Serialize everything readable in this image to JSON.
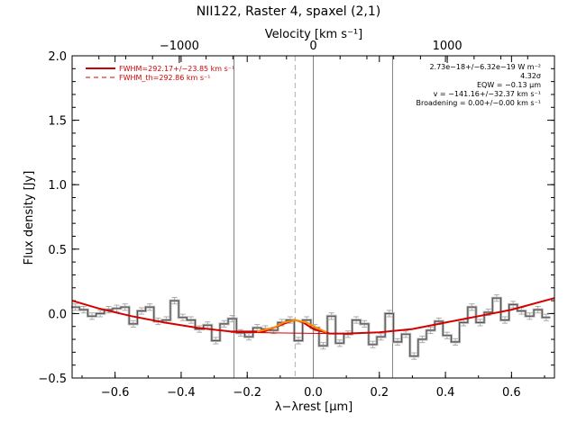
{
  "chart_data": {
    "type": "line",
    "title": "NII122, Raster 4, spaxel (2,1)",
    "xlabel": "λ−λrest [μm]",
    "ylabel": "Flux density [Jy]",
    "top_axis_label": "Velocity [km s⁻¹]",
    "xlim": [
      -0.73,
      0.73
    ],
    "ylim": [
      -0.5,
      2.0
    ],
    "top_xlim": [
      -1800,
      1800
    ],
    "x_ticks": [
      -0.6,
      -0.4,
      -0.2,
      0.0,
      0.2,
      0.4,
      0.6
    ],
    "x_tick_labels": [
      "−0.6",
      "−0.4",
      "−0.2",
      "0.0",
      "0.2",
      "0.4",
      "0.6"
    ],
    "y_ticks": [
      -0.5,
      0.0,
      0.5,
      1.0,
      1.5,
      2.0
    ],
    "y_tick_labels": [
      "−0.5",
      "0.0",
      "0.5",
      "1.0",
      "1.5",
      "2.0"
    ],
    "top_ticks": [
      -1000,
      0,
      1000
    ],
    "top_tick_labels": [
      "−1000",
      "0",
      "1000"
    ],
    "vertical_lines": [
      {
        "x": -0.24,
        "style": "solid",
        "color": "#808080"
      },
      {
        "x": -0.055,
        "style": "dashed",
        "color": "#b0b0b0"
      },
      {
        "x": 0.0,
        "style": "solid",
        "color": "#808080"
      },
      {
        "x": 0.24,
        "style": "solid",
        "color": "#808080"
      }
    ],
    "legend": {
      "placement": "top-left",
      "entries": [
        {
          "label": "FWHM=292.17+/−23.85 km s⁻¹",
          "style": "solid",
          "color": "#d40000"
        },
        {
          "label": "FWHM_th=292.86 km s⁻¹",
          "style": "dashed",
          "color": "#d40000"
        }
      ]
    },
    "annotations": [
      "2.73e−18+/−6.32e−19 W m⁻²",
      "4.32σ",
      "EQW = −0.13 μm",
      "v = −141.16+/−32.37 km s⁻¹",
      "Broadening = 0.00+/−0.00 km s⁻¹"
    ],
    "series": [
      {
        "style": "step",
        "color": "#555555",
        "x": [
          -0.72,
          -0.695,
          -0.67,
          -0.645,
          -0.62,
          -0.595,
          -0.57,
          -0.545,
          -0.52,
          -0.495,
          -0.47,
          -0.445,
          -0.42,
          -0.395,
          -0.37,
          -0.345,
          -0.32,
          -0.295,
          -0.27,
          -0.245,
          -0.22,
          -0.195,
          -0.17,
          -0.145,
          -0.12,
          -0.095,
          -0.07,
          -0.045,
          -0.02,
          0.005,
          0.03,
          0.055,
          0.08,
          0.105,
          0.13,
          0.155,
          0.18,
          0.205,
          0.23,
          0.255,
          0.28,
          0.305,
          0.33,
          0.355,
          0.38,
          0.405,
          0.43,
          0.455,
          0.48,
          0.505,
          0.53,
          0.555,
          0.58,
          0.605,
          0.63,
          0.655,
          0.68,
          0.705
        ],
        "y": [
          0.05,
          0.03,
          -0.02,
          0.0,
          0.03,
          0.04,
          0.05,
          -0.08,
          0.02,
          0.05,
          -0.06,
          -0.05,
          0.1,
          -0.03,
          -0.05,
          -0.12,
          -0.09,
          -0.21,
          -0.08,
          -0.04,
          -0.15,
          -0.18,
          -0.11,
          -0.12,
          -0.13,
          -0.07,
          -0.05,
          -0.21,
          -0.05,
          -0.11,
          -0.25,
          -0.02,
          -0.23,
          -0.16,
          -0.05,
          -0.08,
          -0.24,
          -0.18,
          0.0,
          -0.22,
          -0.16,
          -0.33,
          -0.2,
          -0.13,
          -0.06,
          -0.17,
          -0.22,
          -0.07,
          0.05,
          -0.07,
          0.01,
          0.12,
          -0.05,
          0.07,
          0.02,
          -0.02,
          0.03,
          -0.03
        ],
        "error": 0.025
      },
      {
        "style": "line",
        "color": "#d40000",
        "x": [
          -0.73,
          -0.65,
          -0.55,
          -0.45,
          -0.35,
          -0.25,
          -0.15,
          -0.08,
          -0.055,
          -0.03,
          0.0,
          0.05,
          0.1,
          0.2,
          0.3,
          0.4,
          0.5,
          0.6,
          0.73
        ],
        "y": [
          0.1,
          0.04,
          -0.02,
          -0.07,
          -0.11,
          -0.14,
          -0.14,
          -0.07,
          -0.05,
          -0.07,
          -0.12,
          -0.155,
          -0.155,
          -0.145,
          -0.12,
          -0.07,
          -0.02,
          0.03,
          0.12
        ]
      },
      {
        "style": "thin-line",
        "color": "#d40000",
        "x": [
          -0.25,
          0.05
        ],
        "y": [
          -0.145,
          -0.155
        ]
      },
      {
        "style": "line",
        "color": "#ff8c00",
        "x": [
          -0.17,
          -0.12,
          -0.09,
          -0.055,
          -0.02,
          0.01,
          0.04
        ],
        "y": [
          -0.14,
          -0.11,
          -0.07,
          -0.05,
          -0.07,
          -0.11,
          -0.145
        ]
      }
    ]
  }
}
